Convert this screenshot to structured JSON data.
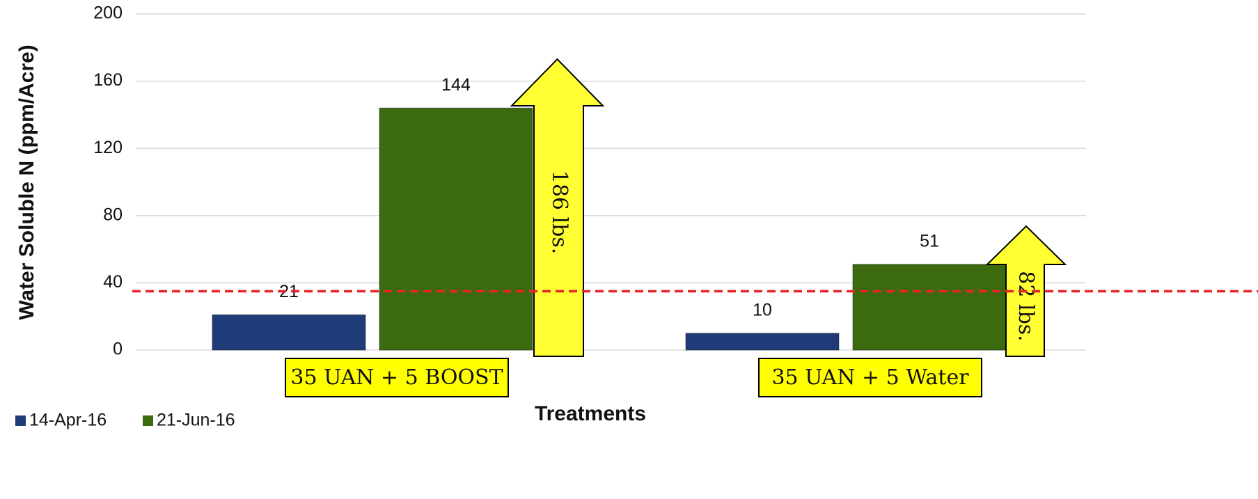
{
  "chart_data": {
    "type": "bar",
    "y_axis_label": "Water Soluble N (ppm/Acre)",
    "x_axis_label": "Treatments",
    "categories": [
      "35 UAN + 5 BOOST",
      "35 UAN + 5 Water"
    ],
    "series": [
      {
        "name": "14-Apr-16",
        "color": "#1f3c78",
        "values": [
          21,
          10
        ]
      },
      {
        "name": "21-Jun-16",
        "color": "#3b6a0f",
        "values": [
          144,
          51
        ]
      }
    ],
    "annotations": [
      "186 lbs.",
      "82 lbs."
    ],
    "threshold": 35,
    "threshold_color": "#e8262a",
    "ylim": [
      0,
      200
    ],
    "yticks": [
      0,
      40,
      80,
      120,
      160,
      200
    ],
    "grid": true,
    "legend": "bottom-left"
  }
}
